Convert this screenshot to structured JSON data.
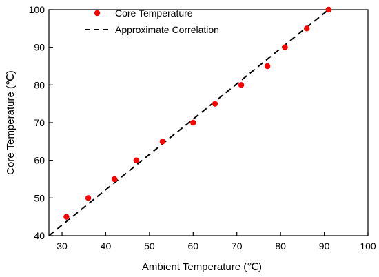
{
  "chart_data": {
    "type": "scatter",
    "xlabel": "Ambient Temperature (℃)",
    "ylabel": "Core Temperature (℃)",
    "xlim": [
      27,
      100
    ],
    "ylim": [
      40,
      100
    ],
    "xticks": [
      30,
      40,
      50,
      60,
      70,
      80,
      90,
      100
    ],
    "yticks": [
      40,
      50,
      60,
      70,
      80,
      90,
      100
    ],
    "grid": false,
    "legend_position": "top-left",
    "series": [
      {
        "name": "Core Temperature",
        "kind": "scatter",
        "color": "#ff0000",
        "x": [
          31,
          36,
          42,
          47,
          53,
          60,
          65,
          71,
          77,
          81,
          86,
          91
        ],
        "y": [
          45,
          50,
          55,
          60,
          65,
          70,
          75,
          80,
          85,
          90,
          95,
          100
        ]
      },
      {
        "name": "Approximate Correlation",
        "kind": "line",
        "style": "dashed",
        "color": "#000000",
        "x": [
          27,
          91
        ],
        "y": [
          40,
          100
        ]
      }
    ]
  }
}
